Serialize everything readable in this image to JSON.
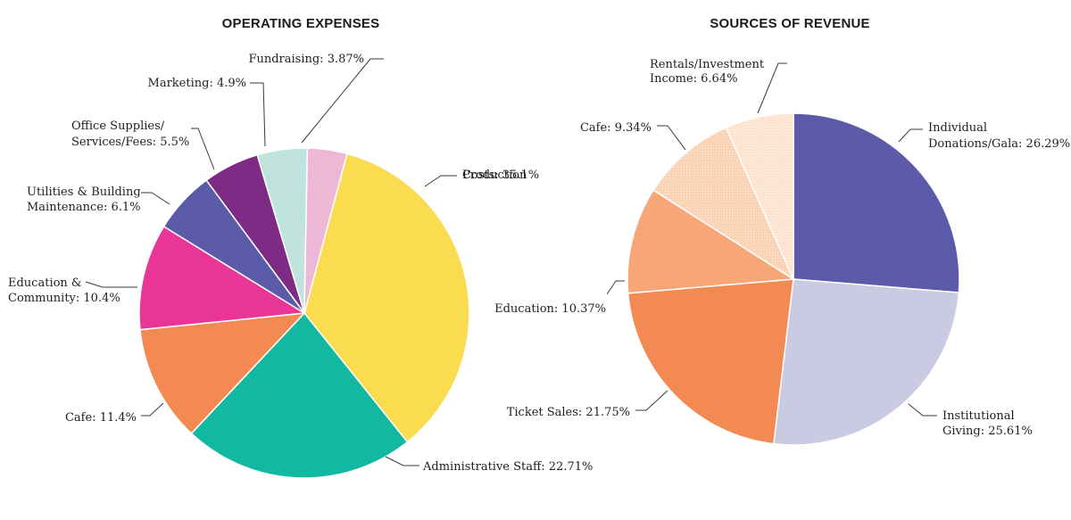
{
  "chart_data": [
    {
      "type": "pie",
      "title": "OPERATING EXPENSES",
      "slices": [
        {
          "name": "Production Costs",
          "value": 35.1,
          "color": "#FBDB50",
          "label_lines": [
            "Production",
            "Costs: 35.1%"
          ]
        },
        {
          "name": "Administrative Staff",
          "value": 22.71,
          "color": "#12B9A0",
          "label_lines": [
            "Administrative Staff: 22.71%"
          ]
        },
        {
          "name": "Cafe",
          "value": 11.4,
          "color": "#F48A53",
          "label_lines": [
            "Cafe: 11.4%"
          ]
        },
        {
          "name": "Education & Community",
          "value": 10.4,
          "color": "#E83596",
          "label_lines": [
            "Education &",
            "Community: 10.4%"
          ]
        },
        {
          "name": "Utilities & Building Maintenance",
          "value": 6.1,
          "color": "#5B5BAA",
          "label_lines": [
            "Utilities & Building",
            "Maintenance: 6.1%"
          ]
        },
        {
          "name": "Office Supplies/ Services/Fees",
          "value": 5.5,
          "color": "#7E2B85",
          "label_lines": [
            "Office Supplies/",
            "Services/Fees: 5.5%"
          ]
        },
        {
          "name": "Marketing",
          "value": 4.9,
          "color": "#C0E3DD",
          "label_lines": [
            "Marketing: 4.9%"
          ]
        },
        {
          "name": "Fundraising",
          "value": 3.87,
          "color": "#EDB7D6",
          "label_lines": [
            "Fundraising: 3.87%"
          ]
        }
      ]
    },
    {
      "type": "pie",
      "title": "SOURCES OF REVENUE",
      "slices": [
        {
          "name": "Individual Donations/Gala",
          "value": 26.29,
          "color": "#5B5BAA",
          "label_lines": [
            "Individual",
            "Donations/Gala: 26.29%"
          ]
        },
        {
          "name": "Institutional Giving",
          "value": 25.61,
          "color": "#CACAE2",
          "label_lines": [
            "Institutional",
            "Giving: 25.61%"
          ]
        },
        {
          "name": "Ticket Sales",
          "value": 21.75,
          "color": "#F48A53",
          "label_lines": [
            "Ticket Sales: 21.75%"
          ]
        },
        {
          "name": "Education",
          "value": 10.37,
          "color": "#F7A677",
          "label_lines": [
            "Education: 10.37%"
          ]
        },
        {
          "name": "Cafe",
          "value": 9.34,
          "color": "#FBD2B4",
          "label_lines": [
            "Cafe: 9.34%"
          ]
        },
        {
          "name": "Rentals/Investment Income",
          "value": 6.64,
          "color": "#FDE3CF",
          "label_lines": [
            "Rentals/Investment",
            "Income: 6.64%"
          ]
        }
      ]
    }
  ]
}
